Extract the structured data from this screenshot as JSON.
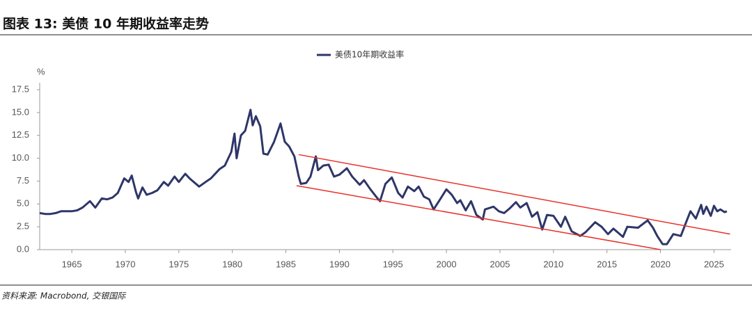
{
  "chart_data": {
    "type": "line",
    "title": "图表 13: 美债 10 年期收益率走势",
    "y_unit_label": "%",
    "source": "资料来源: Macrobond, 交银国际",
    "legend_position": "top",
    "xlim": [
      1962,
      2026.6
    ],
    "xticks": [
      1965,
      1970,
      1975,
      1980,
      1985,
      1990,
      1995,
      2000,
      2005,
      2010,
      2015,
      2020,
      2025
    ],
    "ylim": [
      0,
      17.5
    ],
    "yticks": [
      {
        "value": 0,
        "label": "0.0"
      },
      {
        "value": 2.5,
        "label": "2.5"
      },
      {
        "value": 5,
        "label": "5.0"
      },
      {
        "value": 7.5,
        "label": "7.5"
      },
      {
        "value": 10,
        "label": "10.0"
      },
      {
        "value": 12.5,
        "label": "12.5"
      },
      {
        "value": 15,
        "label": "15.0"
      },
      {
        "value": 17.5,
        "label": "17.5"
      }
    ],
    "grid": false,
    "x": [
      1962,
      1962.5,
      1963,
      1963.5,
      1964,
      1965,
      1965.5,
      1966,
      1966.7,
      1967.2,
      1967.8,
      1968.3,
      1968.8,
      1969.3,
      1969.9,
      1970.3,
      1970.6,
      1971.0,
      1971.2,
      1971.6,
      1972.0,
      1972.5,
      1973.0,
      1973.6,
      1974.0,
      1974.6,
      1975.0,
      1975.6,
      1976.0,
      1976.9,
      1977.5,
      1978.0,
      1978.8,
      1979.3,
      1979.9,
      1980.2,
      1980.4,
      1980.8,
      1981.2,
      1981.7,
      1981.9,
      1982.2,
      1982.6,
      1982.9,
      1983.3,
      1983.9,
      1984.5,
      1984.9,
      1985.3,
      1985.8,
      1986.2,
      1986.4,
      1986.9,
      1987.3,
      1987.8,
      1988.0,
      1988.5,
      1989.0,
      1989.5,
      1990.0,
      1990.7,
      1991.2,
      1991.9,
      1992.3,
      1992.9,
      1993.5,
      1993.8,
      1994.3,
      1994.9,
      1995.5,
      1995.9,
      1996.4,
      1997.0,
      1997.4,
      1997.9,
      1998.4,
      1998.8,
      1999.3,
      2000.0,
      2000.5,
      2001.0,
      2001.3,
      2001.8,
      2002.3,
      2002.8,
      2003.4,
      2003.6,
      2004.4,
      2004.9,
      2005.4,
      2005.9,
      2006.5,
      2006.9,
      2007.5,
      2008.0,
      2008.5,
      2008.95,
      2009.4,
      2010.0,
      2010.7,
      2011.1,
      2011.7,
      2012.5,
      2013.0,
      2013.9,
      2014.5,
      2015.1,
      2015.6,
      2016.5,
      2016.9,
      2017.9,
      2018.8,
      2019.3,
      2019.7,
      2020.2,
      2020.6,
      2021.2,
      2021.9,
      2022.4,
      2022.8,
      2023.3,
      2023.8,
      2024.0,
      2024.3,
      2024.7,
      2025.0,
      2025.3,
      2025.6,
      2026.0,
      2026.2
    ],
    "series": [
      {
        "name": "美债10年期收益率",
        "color": "#2e3668",
        "values": [
          4.0,
          3.9,
          3.9,
          4.0,
          4.2,
          4.2,
          4.3,
          4.6,
          5.3,
          4.6,
          5.6,
          5.5,
          5.7,
          6.2,
          7.8,
          7.4,
          8.1,
          6.3,
          5.6,
          6.8,
          6.0,
          6.2,
          6.5,
          7.4,
          7.0,
          8.0,
          7.4,
          8.3,
          7.8,
          6.9,
          7.4,
          7.8,
          8.8,
          9.2,
          10.7,
          12.7,
          10.0,
          12.5,
          13.0,
          15.3,
          13.6,
          14.6,
          13.5,
          10.5,
          10.4,
          11.8,
          13.8,
          11.8,
          11.3,
          10.2,
          8.0,
          7.2,
          7.3,
          8.0,
          10.2,
          8.7,
          9.2,
          9.3,
          8.0,
          8.2,
          8.9,
          8.0,
          7.1,
          7.6,
          6.6,
          5.7,
          5.3,
          7.2,
          7.9,
          6.2,
          5.7,
          6.9,
          6.4,
          6.9,
          5.8,
          5.5,
          4.4,
          5.3,
          6.6,
          6.0,
          5.1,
          5.4,
          4.3,
          5.3,
          3.8,
          3.3,
          4.4,
          4.7,
          4.2,
          4.0,
          4.5,
          5.2,
          4.6,
          5.1,
          3.6,
          4.1,
          2.2,
          3.8,
          3.7,
          2.5,
          3.6,
          2.0,
          1.5,
          1.9,
          3.0,
          2.5,
          1.7,
          2.3,
          1.4,
          2.5,
          2.4,
          3.2,
          2.4,
          1.5,
          0.6,
          0.6,
          1.7,
          1.5,
          3.0,
          4.2,
          3.4,
          4.9,
          3.9,
          4.7,
          3.7,
          4.8,
          4.2,
          4.4,
          4.1,
          4.2
        ]
      }
    ],
    "channel_lines": [
      {
        "color": "#e8302a",
        "x": [
          1986.2,
          2026.5
        ],
        "y": [
          10.4,
          1.7
        ]
      },
      {
        "color": "#e8302a",
        "x": [
          1986,
          2020
        ],
        "y": [
          7.0,
          0
        ]
      }
    ]
  }
}
